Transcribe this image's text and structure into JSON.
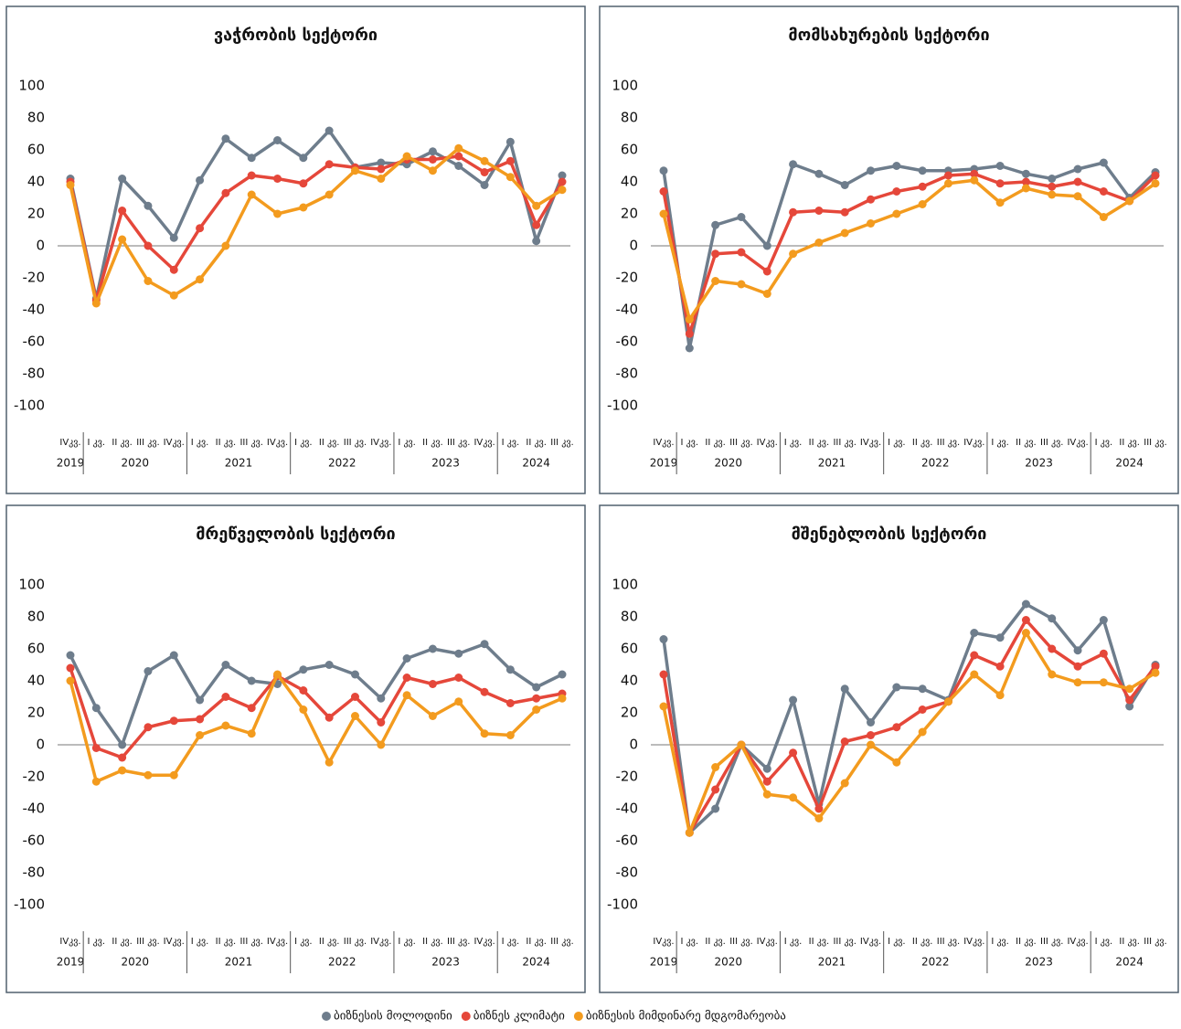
{
  "chart_data": [
    {
      "type": "line",
      "title": "ვაჭრობის სექტორი",
      "categories": [
        "IVკვ.",
        "I კვ.",
        "II კვ.",
        "III კვ.",
        "IVკვ.",
        "I კვ.",
        "II კვ.",
        "III კვ.",
        "IVკვ.",
        "I კვ.",
        "II კვ.",
        "III კვ.",
        "IVკვ.",
        "I კვ.",
        "II კვ.",
        "III კვ.",
        "IVკვ.",
        "I კვ.",
        "II კვ.",
        "III კვ."
      ],
      "category_groups": [
        {
          "label": "2019",
          "count": 1
        },
        {
          "label": "2020",
          "count": 4
        },
        {
          "label": "2021",
          "count": 4
        },
        {
          "label": "2022",
          "count": 4
        },
        {
          "label": "2023",
          "count": 4
        },
        {
          "label": "2024",
          "count": 3
        }
      ],
      "ylim": [
        -100,
        100
      ],
      "yticks": [
        -100,
        -80,
        -60,
        -40,
        -20,
        0,
        20,
        40,
        60,
        80,
        100
      ],
      "series": [
        {
          "name": "ბიზნესის მოლოდინი",
          "color": "#6e7d8c",
          "values": [
            42,
            -33,
            42,
            25,
            5,
            41,
            67,
            55,
            66,
            55,
            72,
            49,
            52,
            51,
            59,
            50,
            38,
            65,
            3,
            44
          ]
        },
        {
          "name": "ბიზნეს კლიმატი",
          "color": "#e5473a",
          "values": [
            40,
            -34,
            22,
            0,
            -15,
            11,
            33,
            44,
            42,
            39,
            51,
            49,
            48,
            54,
            54,
            56,
            46,
            53,
            13,
            40
          ]
        },
        {
          "name": "ბიზნესის მიმდინარე მდგომარეობა",
          "color": "#f39b1e",
          "values": [
            38,
            -36,
            4,
            -22,
            -31,
            -21,
            0,
            32,
            20,
            24,
            32,
            47,
            42,
            56,
            47,
            61,
            53,
            43,
            25,
            35
          ]
        }
      ]
    },
    {
      "type": "line",
      "title": "მომსახურების სექტორი",
      "categories": [
        "IVკვ.",
        "I კვ.",
        "II კვ.",
        "III კვ.",
        "IVკვ.",
        "I კვ.",
        "II კვ.",
        "III კვ.",
        "IVკვ.",
        "I კვ.",
        "II კვ.",
        "III კვ.",
        "IVკვ.",
        "I კვ.",
        "II კვ.",
        "III კვ.",
        "IVკვ.",
        "I კვ.",
        "II კვ.",
        "III კვ."
      ],
      "category_groups": [
        {
          "label": "2019",
          "count": 1
        },
        {
          "label": "2020",
          "count": 4
        },
        {
          "label": "2021",
          "count": 4
        },
        {
          "label": "2022",
          "count": 4
        },
        {
          "label": "2023",
          "count": 4
        },
        {
          "label": "2024",
          "count": 3
        }
      ],
      "ylim": [
        -100,
        100
      ],
      "yticks": [
        -100,
        -80,
        -60,
        -40,
        -20,
        0,
        20,
        40,
        60,
        80,
        100
      ],
      "series": [
        {
          "name": "ბიზნესის მოლოდინი",
          "color": "#6e7d8c",
          "values": [
            47,
            -64,
            13,
            18,
            0,
            51,
            45,
            38,
            47,
            50,
            47,
            47,
            48,
            50,
            45,
            42,
            48,
            52,
            30,
            46
          ]
        },
        {
          "name": "ბიზნეს კლიმატი",
          "color": "#e5473a",
          "values": [
            34,
            -55,
            -5,
            -4,
            -16,
            21,
            22,
            21,
            29,
            34,
            37,
            44,
            45,
            39,
            40,
            37,
            40,
            34,
            28,
            44
          ]
        },
        {
          "name": "ბიზნესის მიმდინარე მდგომარეობა",
          "color": "#f39b1e",
          "values": [
            20,
            -46,
            -22,
            -24,
            -30,
            -5,
            2,
            8,
            14,
            20,
            26,
            39,
            41,
            27,
            36,
            32,
            31,
            18,
            28,
            39
          ]
        }
      ]
    },
    {
      "type": "line",
      "title": "მრეწველობის სექტორი",
      "categories": [
        "IVკვ.",
        "I კვ.",
        "II კვ.",
        "III კვ.",
        "IVკვ.",
        "I კვ.",
        "II კვ.",
        "III კვ.",
        "IVკვ.",
        "I კვ.",
        "II კვ.",
        "III კვ.",
        "IVკვ.",
        "I კვ.",
        "II კვ.",
        "III კვ.",
        "IVკვ.",
        "I კვ.",
        "II კვ.",
        "III კვ."
      ],
      "category_groups": [
        {
          "label": "2019",
          "count": 1
        },
        {
          "label": "2020",
          "count": 4
        },
        {
          "label": "2021",
          "count": 4
        },
        {
          "label": "2022",
          "count": 4
        },
        {
          "label": "2023",
          "count": 4
        },
        {
          "label": "2024",
          "count": 3
        }
      ],
      "ylim": [
        -100,
        100
      ],
      "yticks": [
        -100,
        -80,
        -60,
        -40,
        -20,
        0,
        20,
        40,
        60,
        80,
        100
      ],
      "series": [
        {
          "name": "ბიზნესის მოლოდინი",
          "color": "#6e7d8c",
          "values": [
            56,
            23,
            0,
            46,
            56,
            28,
            50,
            40,
            38,
            47,
            50,
            44,
            29,
            54,
            60,
            57,
            63,
            47,
            36,
            44
          ]
        },
        {
          "name": "ბიზნეს კლიმატი",
          "color": "#e5473a",
          "values": [
            48,
            -2,
            -8,
            11,
            15,
            16,
            30,
            23,
            43,
            34,
            17,
            30,
            14,
            42,
            38,
            42,
            33,
            26,
            29,
            32
          ]
        },
        {
          "name": "ბიზნესის მიმდინარე მდგომარეობა",
          "color": "#f39b1e",
          "values": [
            40,
            -23,
            -16,
            -19,
            -19,
            6,
            12,
            7,
            44,
            22,
            -11,
            18,
            0,
            31,
            18,
            27,
            7,
            6,
            22,
            29
          ]
        }
      ]
    },
    {
      "type": "line",
      "title": "მშენებლობის სექტორი",
      "categories": [
        "IVკვ.",
        "I კვ.",
        "II კვ.",
        "III კვ.",
        "IVკვ.",
        "I კვ.",
        "II კვ.",
        "III კვ.",
        "IVკვ.",
        "I კვ.",
        "II კვ.",
        "III კვ.",
        "IVკვ.",
        "I კვ.",
        "II კვ.",
        "III კვ.",
        "IVკვ.",
        "I კვ.",
        "II კვ.",
        "III კვ."
      ],
      "category_groups": [
        {
          "label": "2019",
          "count": 1
        },
        {
          "label": "2020",
          "count": 4
        },
        {
          "label": "2021",
          "count": 4
        },
        {
          "label": "2022",
          "count": 4
        },
        {
          "label": "2023",
          "count": 4
        },
        {
          "label": "2024",
          "count": 3
        }
      ],
      "ylim": [
        -100,
        100
      ],
      "yticks": [
        -100,
        -80,
        -60,
        -40,
        -20,
        0,
        20,
        40,
        60,
        80,
        100
      ],
      "series": [
        {
          "name": "ბიზნესის მოლოდინი",
          "color": "#6e7d8c",
          "values": [
            66,
            -55,
            -40,
            0,
            -15,
            28,
            -37,
            35,
            14,
            36,
            35,
            28,
            70,
            67,
            88,
            79,
            59,
            78,
            24,
            50
          ]
        },
        {
          "name": "ბიზნეს კლიმატი",
          "color": "#e5473a",
          "values": [
            44,
            -55,
            -28,
            0,
            -23,
            -5,
            -40,
            2,
            6,
            11,
            22,
            27,
            56,
            49,
            78,
            60,
            49,
            57,
            28,
            49
          ]
        },
        {
          "name": "ბიზნესის მიმდინარე მდგომარეობა",
          "color": "#f39b1e",
          "values": [
            24,
            -55,
            -14,
            0,
            -31,
            -33,
            -46,
            -24,
            0,
            -11,
            8,
            27,
            44,
            31,
            70,
            44,
            39,
            39,
            35,
            45
          ]
        }
      ]
    }
  ]
}
